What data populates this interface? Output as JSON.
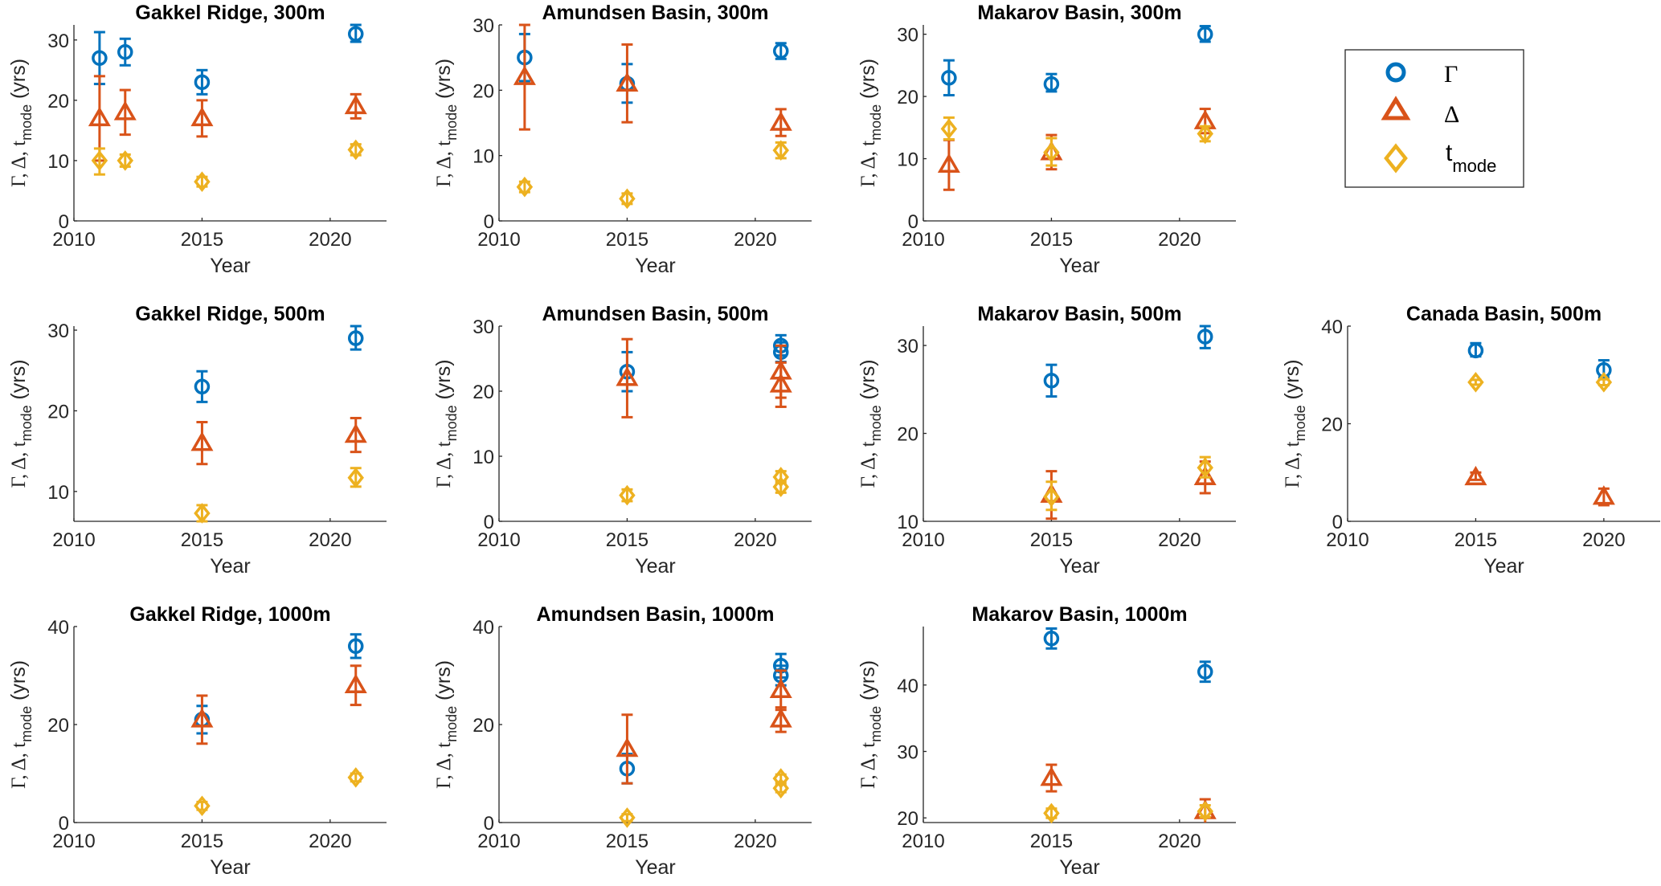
{
  "colors": {
    "gamma": "#0072BD",
    "delta": "#D95319",
    "tmode": "#EDB120",
    "axis": "#262626"
  },
  "legend": {
    "placement": "top-right",
    "entries": [
      {
        "key": "gamma",
        "label": "Γ",
        "marker": "circle",
        "icon": "circle-marker-icon"
      },
      {
        "key": "delta",
        "label": "Δ",
        "marker": "triangle",
        "icon": "triangle-marker-icon"
      },
      {
        "key": "tmode",
        "label": "t",
        "sub": "mode",
        "marker": "diamond",
        "icon": "diamond-marker-icon"
      }
    ]
  },
  "chart_data": [
    {
      "type": "scatter",
      "title": "Gakkel Ridge, 300m",
      "xlabel": "Year",
      "ylabel": "Γ, Δ, t_mode (yrs)",
      "xlim": [
        2010,
        2022.2
      ],
      "ylim": [
        0,
        32.5
      ],
      "xticks": [
        2010,
        2015,
        2020
      ],
      "yticks": [
        0,
        10,
        20,
        30
      ],
      "series": [
        {
          "name": "Γ",
          "key": "gamma",
          "points": [
            {
              "x": 2011,
              "y": 27,
              "lo": 22.7,
              "hi": 31.3
            },
            {
              "x": 2012,
              "y": 28,
              "lo": 25.8,
              "hi": 30.2
            },
            {
              "x": 2015,
              "y": 23,
              "lo": 21,
              "hi": 25
            },
            {
              "x": 2021,
              "y": 31,
              "lo": 29.7,
              "hi": 32.5
            }
          ]
        },
        {
          "name": "Δ",
          "key": "delta",
          "points": [
            {
              "x": 2011,
              "y": 17,
              "lo": 10,
              "hi": 24
            },
            {
              "x": 2012,
              "y": 18,
              "lo": 14.3,
              "hi": 21.7
            },
            {
              "x": 2015,
              "y": 17,
              "lo": 14,
              "hi": 20
            },
            {
              "x": 2021,
              "y": 19,
              "lo": 17,
              "hi": 21
            }
          ]
        },
        {
          "name": "t_mode",
          "key": "tmode",
          "points": [
            {
              "x": 2011,
              "y": 10,
              "lo": 7.7,
              "hi": 12
            },
            {
              "x": 2012,
              "y": 10,
              "lo": 9,
              "hi": 11
            },
            {
              "x": 2015,
              "y": 6.5,
              "lo": 5.7,
              "hi": 7.3
            },
            {
              "x": 2021,
              "y": 11.8,
              "lo": 10.9,
              "hi": 12.7
            }
          ]
        }
      ]
    },
    {
      "type": "scatter",
      "title": "Amundsen Basin, 300m",
      "xlabel": "Year",
      "ylabel": "Γ, Δ, t_mode (yrs)",
      "xlim": [
        2010,
        2022.2
      ],
      "ylim": [
        0,
        30
      ],
      "xticks": [
        2010,
        2015,
        2020
      ],
      "yticks": [
        0,
        10,
        20,
        30
      ],
      "series": [
        {
          "name": "Γ",
          "key": "gamma",
          "points": [
            {
              "x": 2011,
              "y": 25,
              "lo": 21.4,
              "hi": 28.6
            },
            {
              "x": 2015,
              "y": 21,
              "lo": 18.1,
              "hi": 24
            },
            {
              "x": 2021,
              "y": 26,
              "lo": 24.8,
              "hi": 27.2
            }
          ]
        },
        {
          "name": "Δ",
          "key": "delta",
          "points": [
            {
              "x": 2011,
              "y": 22,
              "lo": 14,
              "hi": 30
            },
            {
              "x": 2015,
              "y": 21,
              "lo": 15.1,
              "hi": 27
            },
            {
              "x": 2021,
              "y": 15,
              "lo": 13,
              "hi": 17.1
            }
          ]
        },
        {
          "name": "t_mode",
          "key": "tmode",
          "points": [
            {
              "x": 2011,
              "y": 5.2,
              "lo": 4.4,
              "hi": 6
            },
            {
              "x": 2015,
              "y": 3.4,
              "lo": 2.6,
              "hi": 4.2
            },
            {
              "x": 2021,
              "y": 10.8,
              "lo": 9.6,
              "hi": 12
            }
          ]
        }
      ]
    },
    {
      "type": "scatter",
      "title": "Makarov Basin, 300m",
      "xlabel": "Year",
      "ylabel": "Γ, Δ, t_mode (yrs)",
      "xlim": [
        2010,
        2022.2
      ],
      "ylim": [
        0,
        31.5
      ],
      "xticks": [
        2010,
        2015,
        2020
      ],
      "yticks": [
        0,
        10,
        20,
        30
      ],
      "series": [
        {
          "name": "Γ",
          "key": "gamma",
          "points": [
            {
              "x": 2011,
              "y": 23,
              "lo": 20.2,
              "hi": 25.8
            },
            {
              "x": 2015,
              "y": 22,
              "lo": 20.8,
              "hi": 23.6
            },
            {
              "x": 2021,
              "y": 30,
              "lo": 28.8,
              "hi": 31.3
            }
          ]
        },
        {
          "name": "Δ",
          "key": "delta",
          "points": [
            {
              "x": 2011,
              "y": 9,
              "lo": 5,
              "hi": 13
            },
            {
              "x": 2015,
              "y": 11,
              "lo": 8.3,
              "hi": 13.8
            },
            {
              "x": 2021,
              "y": 16,
              "lo": 14.1,
              "hi": 18
            }
          ]
        },
        {
          "name": "t_mode",
          "key": "tmode",
          "points": [
            {
              "x": 2011,
              "y": 14.8,
              "lo": 13.1,
              "hi": 16.6
            },
            {
              "x": 2015,
              "y": 11,
              "lo": 8.9,
              "hi": 13.3
            },
            {
              "x": 2021,
              "y": 14,
              "lo": 12.8,
              "hi": 15.2
            }
          ]
        }
      ]
    },
    {
      "type": "scatter",
      "title": "Gakkel Ridge, 500m",
      "xlabel": "Year",
      "ylabel": "Γ, Δ, t_mode (yrs)",
      "xlim": [
        2010,
        2022.2
      ],
      "ylim": [
        6.3,
        30.5
      ],
      "xticks": [
        2010,
        2015,
        2020
      ],
      "yticks": [
        10,
        20,
        30
      ],
      "series": [
        {
          "name": "Γ",
          "key": "gamma",
          "points": [
            {
              "x": 2015,
              "y": 23,
              "lo": 21.1,
              "hi": 24.9
            },
            {
              "x": 2021,
              "y": 29,
              "lo": 27.6,
              "hi": 30.5
            }
          ]
        },
        {
          "name": "Δ",
          "key": "delta",
          "points": [
            {
              "x": 2015,
              "y": 16,
              "lo": 13.4,
              "hi": 18.6
            },
            {
              "x": 2021,
              "y": 17,
              "lo": 14.9,
              "hi": 19.1
            }
          ]
        },
        {
          "name": "t_mode",
          "key": "tmode",
          "points": [
            {
              "x": 2015,
              "y": 7.3,
              "lo": 6.3,
              "hi": 8.3
            },
            {
              "x": 2021,
              "y": 11.7,
              "lo": 10.6,
              "hi": 12.9
            }
          ]
        }
      ]
    },
    {
      "type": "scatter",
      "title": "Amundsen Basin, 500m",
      "xlabel": "Year",
      "ylabel": "Γ, Δ, t_mode (yrs)",
      "xlim": [
        2010,
        2022.2
      ],
      "ylim": [
        0,
        30
      ],
      "xticks": [
        2010,
        2015,
        2020
      ],
      "yticks": [
        0,
        10,
        20,
        30
      ],
      "series": [
        {
          "name": "Γ",
          "key": "gamma",
          "points": [
            {
              "x": 2015,
              "y": 23,
              "lo": 20,
              "hi": 26
            },
            {
              "x": 2021,
              "y": 27,
              "lo": 25.5,
              "hi": 28.6
            },
            {
              "x": 2021,
              "y": 26,
              "lo": 24.5,
              "hi": 27.5
            }
          ]
        },
        {
          "name": "Δ",
          "key": "delta",
          "points": [
            {
              "x": 2015,
              "y": 22,
              "lo": 16,
              "hi": 28
            },
            {
              "x": 2021,
              "y": 23,
              "lo": 19,
              "hi": 27
            },
            {
              "x": 2021,
              "y": 21,
              "lo": 17.6,
              "hi": 24.4
            }
          ]
        },
        {
          "name": "t_mode",
          "key": "tmode",
          "points": [
            {
              "x": 2015,
              "y": 4,
              "lo": 3.1,
              "hi": 4.9
            },
            {
              "x": 2021,
              "y": 6.8,
              "lo": 5.9,
              "hi": 7.7
            },
            {
              "x": 2021,
              "y": 5.3,
              "lo": 4.4,
              "hi": 6.2
            }
          ]
        }
      ]
    },
    {
      "type": "scatter",
      "title": "Makarov Basin, 500m",
      "xlabel": "Year",
      "ylabel": "Γ, Δ, t_mode (yrs)",
      "xlim": [
        2010,
        2022.2
      ],
      "ylim": [
        10,
        32.2
      ],
      "xticks": [
        2010,
        2015,
        2020
      ],
      "yticks": [
        10,
        20,
        30
      ],
      "series": [
        {
          "name": "Γ",
          "key": "gamma",
          "points": [
            {
              "x": 2015,
              "y": 26,
              "lo": 24.2,
              "hi": 27.8
            },
            {
              "x": 2021,
              "y": 31,
              "lo": 29.7,
              "hi": 32.2
            }
          ]
        },
        {
          "name": "Δ",
          "key": "delta",
          "points": [
            {
              "x": 2015,
              "y": 13,
              "lo": 10.3,
              "hi": 15.7
            },
            {
              "x": 2021,
              "y": 15,
              "lo": 13.2,
              "hi": 16.8
            }
          ]
        },
        {
          "name": "t_mode",
          "key": "tmode",
          "points": [
            {
              "x": 2015,
              "y": 12.8,
              "lo": 11.3,
              "hi": 14.5
            },
            {
              "x": 2021,
              "y": 16.1,
              "lo": 15,
              "hi": 17.3
            }
          ]
        }
      ]
    },
    {
      "type": "scatter",
      "title": "Canada Basin, 500m",
      "xlabel": "Year",
      "ylabel": "Γ, Δ, t_mode (yrs)",
      "xlim": [
        2010,
        2022.2
      ],
      "ylim": [
        0,
        40
      ],
      "xticks": [
        2010,
        2015,
        2020
      ],
      "yticks": [
        0,
        20,
        40
      ],
      "series": [
        {
          "name": "Γ",
          "key": "gamma",
          "points": [
            {
              "x": 2015,
              "y": 35,
              "lo": 33.8,
              "hi": 36.5
            },
            {
              "x": 2020,
              "y": 31,
              "lo": 29.5,
              "hi": 33
            }
          ]
        },
        {
          "name": "Δ",
          "key": "delta",
          "points": [
            {
              "x": 2015,
              "y": 9,
              "lo": 8.5,
              "hi": 10
            },
            {
              "x": 2020,
              "y": 5,
              "lo": 3.3,
              "hi": 6.7
            }
          ]
        },
        {
          "name": "t_mode",
          "key": "tmode",
          "points": [
            {
              "x": 2015,
              "y": 28.5,
              "lo": 28,
              "hi": 29
            },
            {
              "x": 2020,
              "y": 28.5,
              "lo": 27.9,
              "hi": 29.1
            }
          ]
        }
      ]
    },
    {
      "type": "scatter",
      "title": "Gakkel Ridge, 1000m",
      "xlabel": "Year",
      "ylabel": "Γ, Δ, t_mode (yrs)",
      "xlim": [
        2010,
        2022.2
      ],
      "ylim": [
        0,
        40
      ],
      "xticks": [
        2010,
        2015,
        2020
      ],
      "yticks": [
        0,
        20,
        40
      ],
      "series": [
        {
          "name": "Γ",
          "key": "gamma",
          "points": [
            {
              "x": 2015,
              "y": 21,
              "lo": 18.2,
              "hi": 23.8
            },
            {
              "x": 2021,
              "y": 36,
              "lo": 33.6,
              "hi": 38.4
            }
          ]
        },
        {
          "name": "Δ",
          "key": "delta",
          "points": [
            {
              "x": 2015,
              "y": 21,
              "lo": 16.1,
              "hi": 25.9
            },
            {
              "x": 2021,
              "y": 28,
              "lo": 24,
              "hi": 32
            }
          ]
        },
        {
          "name": "t_mode",
          "key": "tmode",
          "points": [
            {
              "x": 2015,
              "y": 3.4,
              "lo": 2.6,
              "hi": 4.2
            },
            {
              "x": 2021,
              "y": 9.2,
              "lo": 8.4,
              "hi": 10
            }
          ]
        }
      ]
    },
    {
      "type": "scatter",
      "title": "Amundsen Basin, 1000m",
      "xlabel": "Year",
      "ylabel": "Γ, Δ, t_mode (yrs)",
      "xlim": [
        2010,
        2022.2
      ],
      "ylim": [
        0,
        40
      ],
      "xticks": [
        2010,
        2015,
        2020
      ],
      "yticks": [
        0,
        20,
        40
      ],
      "series": [
        {
          "name": "Γ",
          "key": "gamma",
          "points": [
            {
              "x": 2015,
              "y": 11,
              "lo": 8,
              "hi": 14
            },
            {
              "x": 2021,
              "y": 32,
              "lo": 29.6,
              "hi": 34.4
            },
            {
              "x": 2021,
              "y": 30,
              "lo": 28,
              "hi": 32
            }
          ]
        },
        {
          "name": "Δ",
          "key": "delta",
          "points": [
            {
              "x": 2015,
              "y": 15,
              "lo": 8,
              "hi": 22
            },
            {
              "x": 2021,
              "y": 27,
              "lo": 23,
              "hi": 31
            },
            {
              "x": 2021,
              "y": 21,
              "lo": 18.5,
              "hi": 23.5
            }
          ]
        },
        {
          "name": "t_mode",
          "key": "tmode",
          "points": [
            {
              "x": 2015,
              "y": 1,
              "lo": 0.3,
              "hi": 1.7
            },
            {
              "x": 2021,
              "y": 9,
              "lo": 8.2,
              "hi": 9.8
            },
            {
              "x": 2021,
              "y": 7,
              "lo": 6.2,
              "hi": 7.8
            }
          ]
        }
      ]
    },
    {
      "type": "scatter",
      "title": "Makarov Basin, 1000m",
      "xlabel": "Year",
      "ylabel": "Γ, Δ, t_mode (yrs)",
      "xlim": [
        2010,
        2022.2
      ],
      "ylim": [
        19.3,
        48.8
      ],
      "xticks": [
        2010,
        2015,
        2020
      ],
      "yticks": [
        20,
        30,
        40
      ],
      "series": [
        {
          "name": "Γ",
          "key": "gamma",
          "points": [
            {
              "x": 2015,
              "y": 47,
              "lo": 45.5,
              "hi": 48.5
            },
            {
              "x": 2021,
              "y": 42,
              "lo": 40.5,
              "hi": 43.5
            }
          ]
        },
        {
          "name": "Δ",
          "key": "delta",
          "points": [
            {
              "x": 2015,
              "y": 26,
              "lo": 24,
              "hi": 28
            },
            {
              "x": 2021,
              "y": 21,
              "lo": 19.2,
              "hi": 22.8
            }
          ]
        },
        {
          "name": "t_mode",
          "key": "tmode",
          "points": [
            {
              "x": 2015,
              "y": 20.7,
              "lo": 20,
              "hi": 21.4
            },
            {
              "x": 2021,
              "y": 21,
              "lo": 20.1,
              "hi": 21.9
            }
          ]
        }
      ]
    }
  ]
}
